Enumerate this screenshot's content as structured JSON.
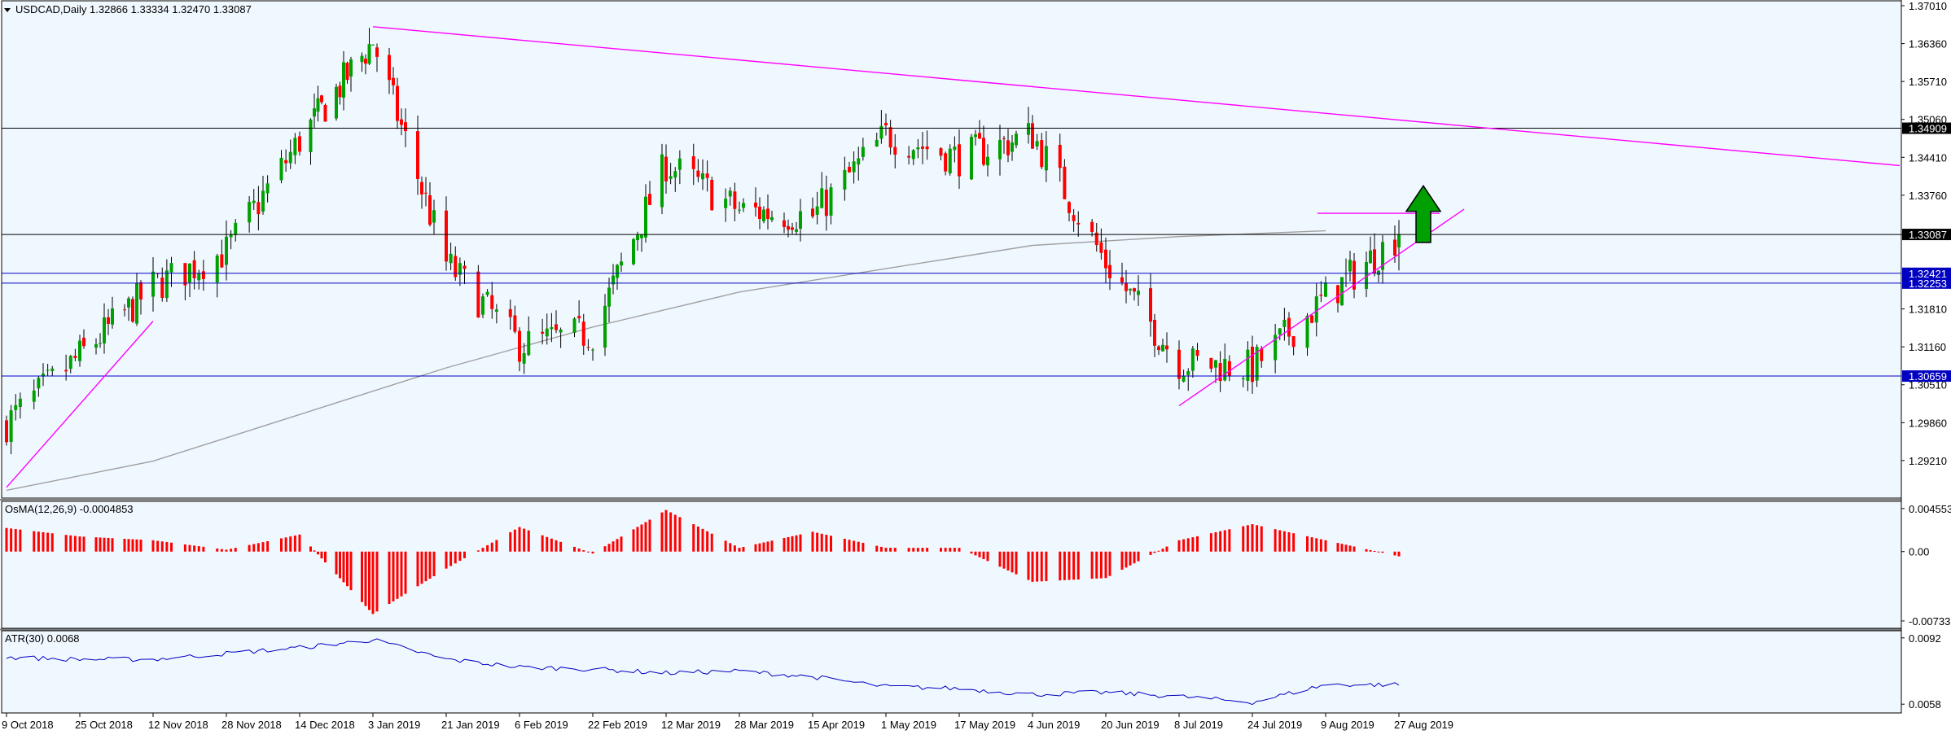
{
  "colors": {
    "background": "#f0f8ff",
    "frame": "#000000",
    "bull": "#00a000",
    "bear": "#ff0000",
    "wick": "#000000",
    "trendline": "#ff00ff",
    "ma": "#a0a0a0",
    "resistance": "#000000",
    "support": "#0000c0",
    "osma": "#ff0000",
    "atr": "#0000c0",
    "arrow_fill": "#00a000",
    "arrow_stroke": "#000000",
    "price_label_black": "#000000",
    "price_label_blue": "#0000c0",
    "axis_text": "#000000"
  },
  "chart_data": {
    "type": "candlestick",
    "symbol_header": "USDCAD,Daily  1.32866 1.33334 1.32470 1.33087",
    "symbol": "USDCAD",
    "timeframe": "Daily",
    "ohlc": {
      "open": 1.32866,
      "high": 1.33334,
      "low": 1.3247,
      "close": 1.33087
    },
    "x_tick_labels": [
      "9 Oct 2018",
      "25 Oct 2018",
      "12 Nov 2018",
      "28 Nov 2018",
      "14 Dec 2018",
      "3 Jan 2019",
      "21 Jan 2019",
      "6 Feb 2019",
      "22 Feb 2019",
      "12 Mar 2019",
      "28 Mar 2019",
      "15 Apr 2019",
      "1 May 2019",
      "17 May 2019",
      "4 Jun 2019",
      "20 Jun 2019",
      "8 Jul 2019",
      "24 Jul 2019",
      "9 Aug 2019",
      "27 Aug 2019"
    ],
    "price_axis": {
      "ylim": [
        1.2865,
        1.3701
      ],
      "tick_labels": [
        "1.37010",
        "1.36360",
        "1.35710",
        "1.35060",
        "1.34410",
        "1.33760",
        "1.33087",
        "1.31810",
        "1.31160",
        "1.30510",
        "1.29860",
        "1.29210"
      ]
    },
    "horizontal_levels": [
      {
        "label": "1.34909",
        "value": 1.34909,
        "kind": "resistance"
      },
      {
        "label": "1.33087",
        "value": 1.33087,
        "kind": "current"
      },
      {
        "label": "1.32421",
        "value": 1.32421,
        "kind": "support"
      },
      {
        "label": "1.32253",
        "value": 1.32253,
        "kind": "support"
      },
      {
        "label": "1.30659",
        "value": 1.30659,
        "kind": "support"
      }
    ],
    "waypoints": [
      {
        "date": "9 Oct 2018",
        "close": 1.2985
      },
      {
        "date": "25 Oct 2018",
        "close": 1.31
      },
      {
        "date": "12 Nov 2018",
        "close": 1.322
      },
      {
        "date": "28 Nov 2018",
        "close": 1.328
      },
      {
        "date": "14 Dec 2018",
        "close": 1.347
      },
      {
        "date": "3 Jan 2019",
        "close": 1.364
      },
      {
        "date": "21 Jan 2019",
        "close": 1.326
      },
      {
        "date": "6 Feb 2019",
        "close": 1.312
      },
      {
        "date": "22 Feb 2019",
        "close": 1.314
      },
      {
        "date": "12 Mar 2019",
        "close": 1.343
      },
      {
        "date": "28 Mar 2019",
        "close": 1.335
      },
      {
        "date": "15 Apr 2019",
        "close": 1.334
      },
      {
        "date": "1 May 2019",
        "close": 1.348
      },
      {
        "date": "17 May 2019",
        "close": 1.344
      },
      {
        "date": "4 Jun 2019",
        "close": 1.348
      },
      {
        "date": "20 Jun 2019",
        "close": 1.326
      },
      {
        "date": "8 Jul 2019",
        "close": 1.309
      },
      {
        "date": "24 Jul 2019",
        "close": 1.308
      },
      {
        "date": "9 Aug 2019",
        "close": 1.32
      },
      {
        "date": "27 Aug 2019",
        "close": 1.33087
      }
    ],
    "moving_average_path": [
      {
        "date": "9 Oct 2018",
        "value": 1.287
      },
      {
        "date": "12 Nov 2018",
        "value": 1.292
      },
      {
        "date": "14 Dec 2018",
        "value": 1.3
      },
      {
        "date": "21 Jan 2019",
        "value": 1.308
      },
      {
        "date": "22 Feb 2019",
        "value": 1.315
      },
      {
        "date": "28 Mar 2019",
        "value": 1.321
      },
      {
        "date": "1 May 2019",
        "value": 1.325
      },
      {
        "date": "4 Jun 2019",
        "value": 1.329
      },
      {
        "date": "8 Jul 2019",
        "value": 1.3305
      },
      {
        "date": "9 Aug 2019",
        "value": 1.3315
      }
    ],
    "trendlines": [
      {
        "name": "rising-support-oct-2018",
        "from": {
          "date": "9 Oct 2018",
          "value": 1.2875
        },
        "to": {
          "date": "12 Nov 2018",
          "value": 1.316
        }
      },
      {
        "name": "descending-resistance",
        "from": {
          "date": "3 Jan 2019",
          "value": 1.3665
        },
        "to": {
          "date": "27 Aug 2019",
          "value": 1.3505
        },
        "extend_right": true
      },
      {
        "name": "rising-support-jul-2019",
        "from": {
          "date": "8 Jul 2019",
          "value": 1.3015
        },
        "to": {
          "date": "27 Aug 2019",
          "value": 1.3275
        },
        "extend_right": true
      }
    ],
    "range_top_line": {
      "from": "24 Jul 2019",
      "to": "27 Aug 2019",
      "value": 1.3345,
      "extend_right": true
    },
    "breakout_arrow": {
      "date": "27 Aug 2019",
      "direction": "up",
      "base": 1.3295,
      "tip": 1.3392
    },
    "osma": {
      "label": "OsMA(12,26,9) -0.0004853",
      "tick_labels": [
        "0.0045538",
        "0.00",
        "-0.0073377"
      ],
      "ylim": [
        -0.0076,
        0.0048
      ],
      "waypoints": [
        {
          "date": "9 Oct 2018",
          "value": 0.0025
        },
        {
          "date": "25 Oct 2018",
          "value": 0.0016
        },
        {
          "date": "12 Nov 2018",
          "value": 0.0012
        },
        {
          "date": "28 Nov 2018",
          "value": 0.0002
        },
        {
          "date": "14 Dec 2018",
          "value": 0.0018
        },
        {
          "date": "3 Jan 2019",
          "value": -0.0066
        },
        {
          "date": "21 Jan 2019",
          "value": -0.0018
        },
        {
          "date": "6 Feb 2019",
          "value": 0.0026
        },
        {
          "date": "22 Feb 2019",
          "value": -0.0002
        },
        {
          "date": "12 Mar 2019",
          "value": 0.0044
        },
        {
          "date": "28 Mar 2019",
          "value": 0.0004
        },
        {
          "date": "15 Apr 2019",
          "value": 0.0021
        },
        {
          "date": "1 May 2019",
          "value": 0.0004
        },
        {
          "date": "17 May 2019",
          "value": 0.0004
        },
        {
          "date": "4 Jun 2019",
          "value": -0.0032
        },
        {
          "date": "20 Jun 2019",
          "value": -0.0028
        },
        {
          "date": "8 Jul 2019",
          "value": 0.0012
        },
        {
          "date": "24 Jul 2019",
          "value": 0.0029
        },
        {
          "date": "9 Aug 2019",
          "value": 0.0012
        },
        {
          "date": "27 Aug 2019",
          "value": -0.0005
        }
      ]
    },
    "atr": {
      "label": "ATR(30) 0.0068",
      "tick_labels": [
        "0.0092",
        "0.0058"
      ],
      "ylim": [
        0.0056,
        0.0094
      ],
      "waypoints": [
        {
          "date": "9 Oct 2018",
          "value": 0.0082
        },
        {
          "date": "25 Oct 2018",
          "value": 0.0081
        },
        {
          "date": "12 Nov 2018",
          "value": 0.0081
        },
        {
          "date": "28 Nov 2018",
          "value": 0.0084
        },
        {
          "date": "14 Dec 2018",
          "value": 0.0087
        },
        {
          "date": "3 Jan 2019",
          "value": 0.0091
        },
        {
          "date": "21 Jan 2019",
          "value": 0.0081
        },
        {
          "date": "6 Feb 2019",
          "value": 0.0077
        },
        {
          "date": "22 Feb 2019",
          "value": 0.0076
        },
        {
          "date": "12 Mar 2019",
          "value": 0.0074
        },
        {
          "date": "28 Mar 2019",
          "value": 0.0075
        },
        {
          "date": "15 Apr 2019",
          "value": 0.0072
        },
        {
          "date": "1 May 2019",
          "value": 0.0067
        },
        {
          "date": "17 May 2019",
          "value": 0.0066
        },
        {
          "date": "4 Jun 2019",
          "value": 0.0063
        },
        {
          "date": "20 Jun 2019",
          "value": 0.0064
        },
        {
          "date": "8 Jul 2019",
          "value": 0.0062
        },
        {
          "date": "24 Jul 2019",
          "value": 0.0059
        },
        {
          "date": "9 Aug 2019",
          "value": 0.0068
        },
        {
          "date": "27 Aug 2019",
          "value": 0.0068
        }
      ]
    }
  }
}
